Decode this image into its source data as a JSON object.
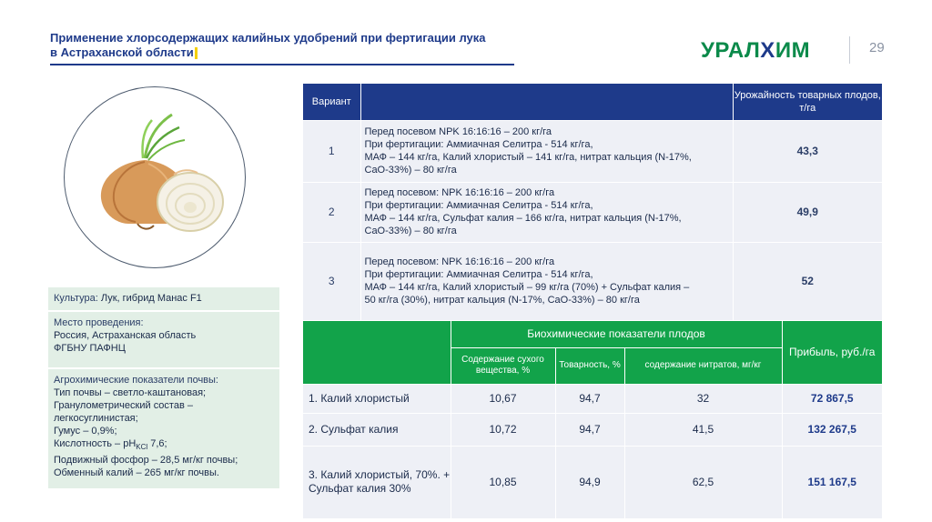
{
  "header": {
    "title_line1": "Применение хлорсодержащих калийных удобрений при фертигации лука",
    "title_line2": "в Астраханской области",
    "logo_part1": "УРАЛ",
    "logo_part2": "Х",
    "logo_part3": "ИМ",
    "page_number": "29"
  },
  "info": {
    "crop_label": "Культура:",
    "crop_value": " Лук, гибрид Манас F1",
    "place_label": "Место проведения:",
    "place_lines": [
      "Россия, Астраханская область",
      "ФГБНУ ПАФНЦ"
    ],
    "agro_label": "Агрохимические показатели почвы:",
    "agro_lines": [
      "Тип почвы – светло-каштановая;",
      "Гранулометрический состав –",
      "легкосуглинистая;",
      "Гумус – 0,9%;"
    ],
    "acid_prefix": "Кислотность – pH",
    "acid_sub": "KCl",
    "acid_value": " 7,6;",
    "agro_lines2": [
      "Подвижный фосфор – 28,5 мг/кг почвы;",
      "Обменный калий – 265 мг/кг почвы."
    ]
  },
  "table1": {
    "headers": {
      "variant": "Вариант",
      "desc": "",
      "yield": "Урожайность товарных плодов, т/га"
    },
    "rows": [
      {
        "num": "1",
        "lines": [
          "Перед посевом NPK 16:16:16 – 200 кг/га",
          "При фертигации: Аммиачная Селитра - 514 кг/га,",
          "МАФ – 144 кг/га, Калий хлористый – 141 кг/га, нитрат кальция  (N-17%,",
          "CaO-33%) – 80 кг/га"
        ],
        "yield": "43,3"
      },
      {
        "num": "2",
        "lines": [
          "Перед посевом: NPK 16:16:16 – 200 кг/га",
          "При фертигации: Аммиачная Селитра - 514 кг/га,",
          "МАФ – 144 кг/га, Сульфат калия – 166 кг/га, нитрат кальция  (N-17%,",
          "CaO-33%) – 80 кг/га"
        ],
        "yield": "49,9"
      },
      {
        "num": "3",
        "lines": [
          "Перед посевом: NPK 16:16:16 – 200 кг/га",
          "При фертигации: Аммиачная Селитра - 514 кг/га,",
          "МАФ – 144 кг/га, Калий хлористый – 99 кг/га (70%) + Сульфат калия –",
          "50 кг/га (30%), нитрат кальция (N-17%, CaO-33%) – 80 кг/га"
        ],
        "yield": "52"
      }
    ]
  },
  "table2": {
    "group_header": "Биохимические показатели плодов",
    "profit_header": "Прибыль, руб./га",
    "sub_headers": [
      "Содержание сухого вещества, %",
      "Товарность, %",
      "содержание нитратов, мг/кг"
    ],
    "rows": [
      {
        "name": "1. Калий хлористый",
        "dry": "10,67",
        "market": "94,7",
        "nitrate": "32",
        "profit": "72 867,5"
      },
      {
        "name": "2. Сульфат калия",
        "dry": "10,72",
        "market": "94,7",
        "nitrate": "41,5",
        "profit": "132 267,5"
      },
      {
        "name": "3. Калий хлористый, 70%. + Сульфат калия 30%",
        "dry": "10,85",
        "market": "94,9",
        "nitrate": "62,5",
        "profit": "151 167,5"
      }
    ]
  }
}
